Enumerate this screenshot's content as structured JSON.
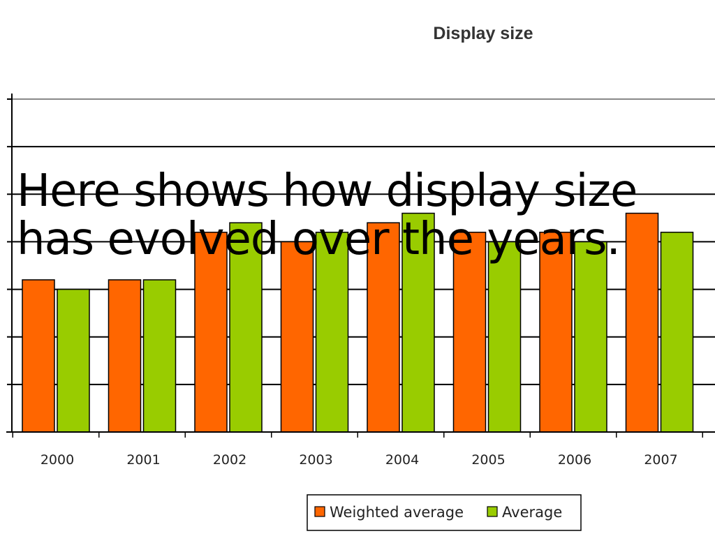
{
  "overlay_text": "Here shows how display size has evolved over the years.",
  "colors": {
    "weighted_average": "#ff6600",
    "average": "#99cc00",
    "gridline": "#000000",
    "axis": "#000000"
  },
  "chart_data": {
    "type": "bar",
    "title": "Display size",
    "xlabel": "",
    "ylabel": "",
    "categories": [
      "2000",
      "2001",
      "2002",
      "2003",
      "2004",
      "2005",
      "2006",
      "2007"
    ],
    "series": [
      {
        "name": "Weighted average",
        "values": [
          3.2,
          3.2,
          4.2,
          4.0,
          4.4,
          4.2,
          4.2,
          4.6
        ]
      },
      {
        "name": "Average",
        "values": [
          3.0,
          3.2,
          4.4,
          4.2,
          4.6,
          4.0,
          4.0,
          4.2
        ]
      }
    ],
    "ylim": [
      0,
      7
    ],
    "grid": true,
    "legend": "bottom"
  }
}
